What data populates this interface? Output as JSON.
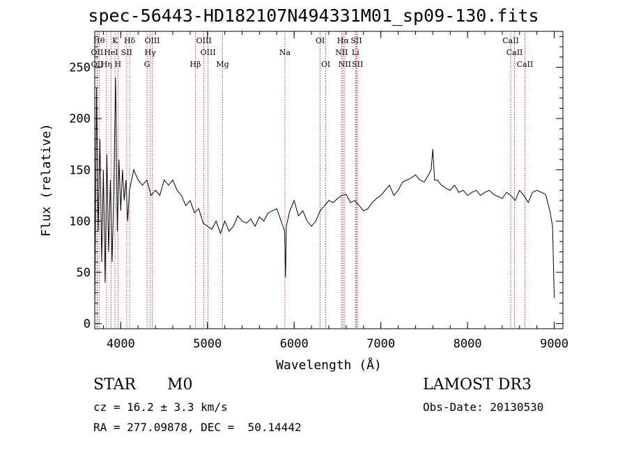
{
  "chart_data": {
    "type": "line",
    "title": "spec-56443-HD182107N494331M01_sp09-130.fits",
    "xlabel": "Wavelength (Å)",
    "ylabel": "Flux (relative)",
    "xlim": [
      3700,
      9100
    ],
    "ylim": [
      -5,
      285
    ],
    "x_ticks": [
      4000,
      5000,
      6000,
      7000,
      8000,
      9000
    ],
    "x_tick_labels": [
      "4000",
      "5000",
      "6000",
      "7000",
      "8000",
      "9000"
    ],
    "y_ticks": [
      0,
      50,
      100,
      150,
      200,
      250
    ],
    "y_tick_labels": [
      "0",
      "50",
      "100",
      "150",
      "200",
      "250"
    ],
    "series": [
      {
        "name": "flux",
        "x": [
          3700,
          3720,
          3740,
          3760,
          3780,
          3800,
          3820,
          3840,
          3860,
          3880,
          3900,
          3920,
          3940,
          3960,
          3980,
          4000,
          4020,
          4040,
          4060,
          4080,
          4100,
          4150,
          4200,
          4250,
          4300,
          4350,
          4400,
          4450,
          4500,
          4550,
          4600,
          4650,
          4700,
          4750,
          4800,
          4850,
          4900,
          4950,
          5000,
          5050,
          5100,
          5150,
          5200,
          5250,
          5300,
          5350,
          5400,
          5450,
          5500,
          5550,
          5600,
          5650,
          5700,
          5750,
          5800,
          5850,
          5890,
          5900,
          5910,
          5950,
          6000,
          6050,
          6100,
          6150,
          6200,
          6250,
          6300,
          6350,
          6400,
          6450,
          6500,
          6550,
          6600,
          6650,
          6700,
          6750,
          6800,
          6850,
          6900,
          6950,
          7000,
          7050,
          7100,
          7150,
          7200,
          7250,
          7300,
          7350,
          7400,
          7450,
          7500,
          7550,
          7580,
          7600,
          7620,
          7650,
          7700,
          7750,
          7800,
          7850,
          7900,
          7950,
          8000,
          8050,
          8100,
          8150,
          8200,
          8250,
          8300,
          8350,
          8400,
          8450,
          8500,
          8550,
          8600,
          8650,
          8700,
          8750,
          8800,
          8850,
          8900,
          8950,
          8980,
          9000
        ],
        "y": [
          10,
          230,
          90,
          180,
          60,
          150,
          40,
          165,
          70,
          140,
          60,
          130,
          240,
          90,
          160,
          110,
          150,
          120,
          140,
          100,
          130,
          150,
          140,
          135,
          140,
          125,
          130,
          125,
          140,
          135,
          140,
          130,
          125,
          115,
          120,
          108,
          112,
          98,
          95,
          92,
          100,
          88,
          100,
          90,
          95,
          105,
          100,
          98,
          102,
          95,
          104,
          100,
          108,
          110,
          112,
          100,
          90,
          45,
          95,
          110,
          120,
          105,
          110,
          100,
          95,
          100,
          110,
          115,
          120,
          118,
          122,
          125,
          126,
          118,
          120,
          115,
          110,
          112,
          118,
          122,
          125,
          130,
          135,
          125,
          130,
          138,
          140,
          142,
          145,
          140,
          138,
          145,
          150,
          170,
          140,
          140,
          135,
          132,
          130,
          135,
          128,
          130,
          125,
          128,
          130,
          125,
          128,
          130,
          126,
          124,
          122,
          128,
          125,
          120,
          130,
          125,
          118,
          128,
          130,
          128,
          126,
          110,
          95,
          25
        ]
      }
    ],
    "annotations": [
      "Hθ",
      "OII",
      "OII",
      "K",
      "HeI",
      "Hη",
      "SII",
      "H",
      "Hδ",
      "OIII",
      "Hγ",
      "G",
      "Hβ",
      "OIII",
      "OIII",
      "Mg",
      "Na",
      "OI",
      "OI",
      "Hα",
      "NII",
      "NII",
      "SII",
      "Li",
      "SII",
      "CaII",
      "CaII",
      "CaII"
    ]
  },
  "footer": {
    "object_type": "STAR",
    "subclass": "M0",
    "redshift": "cz = 16.2 ± 3.3 km/s",
    "coords": "RA = 277.09878, DEC =  50.14442",
    "survey": "LAMOST DR3",
    "obs_date": "Obs-Date: 20130530"
  }
}
